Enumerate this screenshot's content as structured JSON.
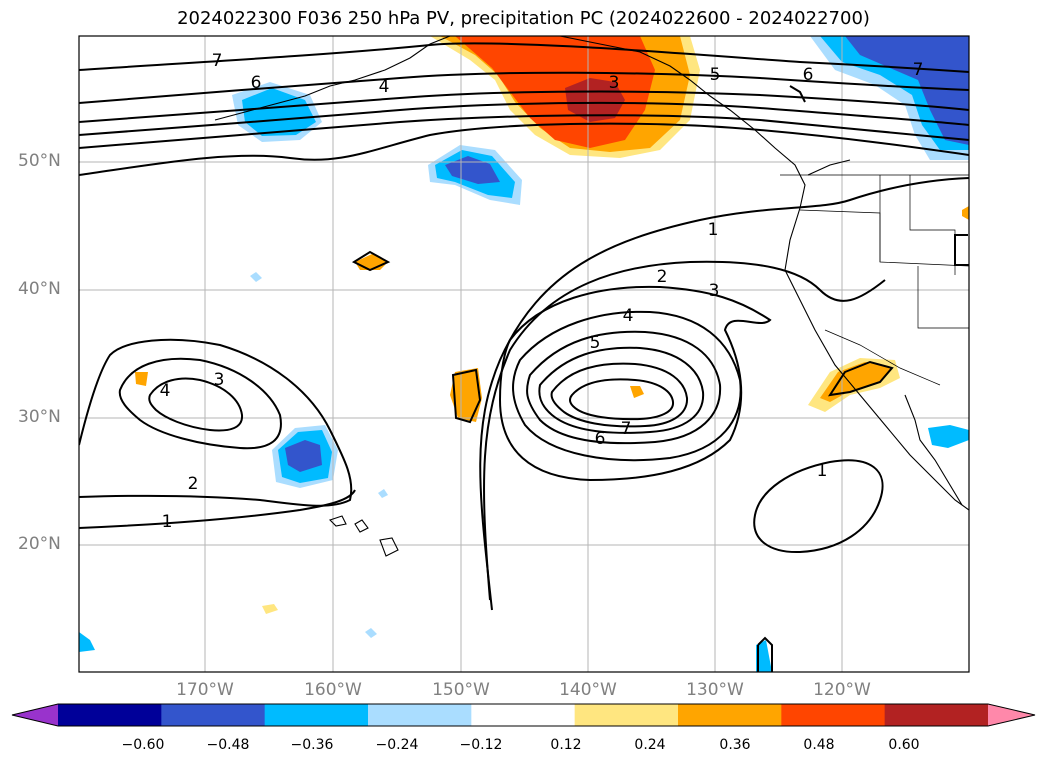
{
  "title": "2024022300 F036 250 hPa PV, precipitation PC (2024022600 - 2024022700)",
  "lat_labels": [
    "50°N",
    "40°N",
    "30°N",
    "20°N"
  ],
  "lon_labels": [
    "170°W",
    "160°W",
    "150°W",
    "140°W",
    "130°W",
    "120°W"
  ],
  "colorbar": {
    "ticks": [
      "−0.60",
      "−0.48",
      "−0.36",
      "−0.24",
      "−0.12",
      "0.12",
      "0.24",
      "0.36",
      "0.48",
      "0.60"
    ],
    "colors": [
      "#9933cc",
      "#000099",
      "#3355cc",
      "#00bbff",
      "#aaddff",
      "#ffffff",
      "#ffe680",
      "#ffa500",
      "#ff4500",
      "#b22222",
      "#ff88aa"
    ]
  },
  "contour_labels": [
    "7",
    "6",
    "4",
    "3",
    "5",
    "6",
    "7",
    "1",
    "2",
    "3",
    "4",
    "5",
    "6",
    "7",
    "3",
    "4",
    "2",
    "1",
    "1"
  ]
}
